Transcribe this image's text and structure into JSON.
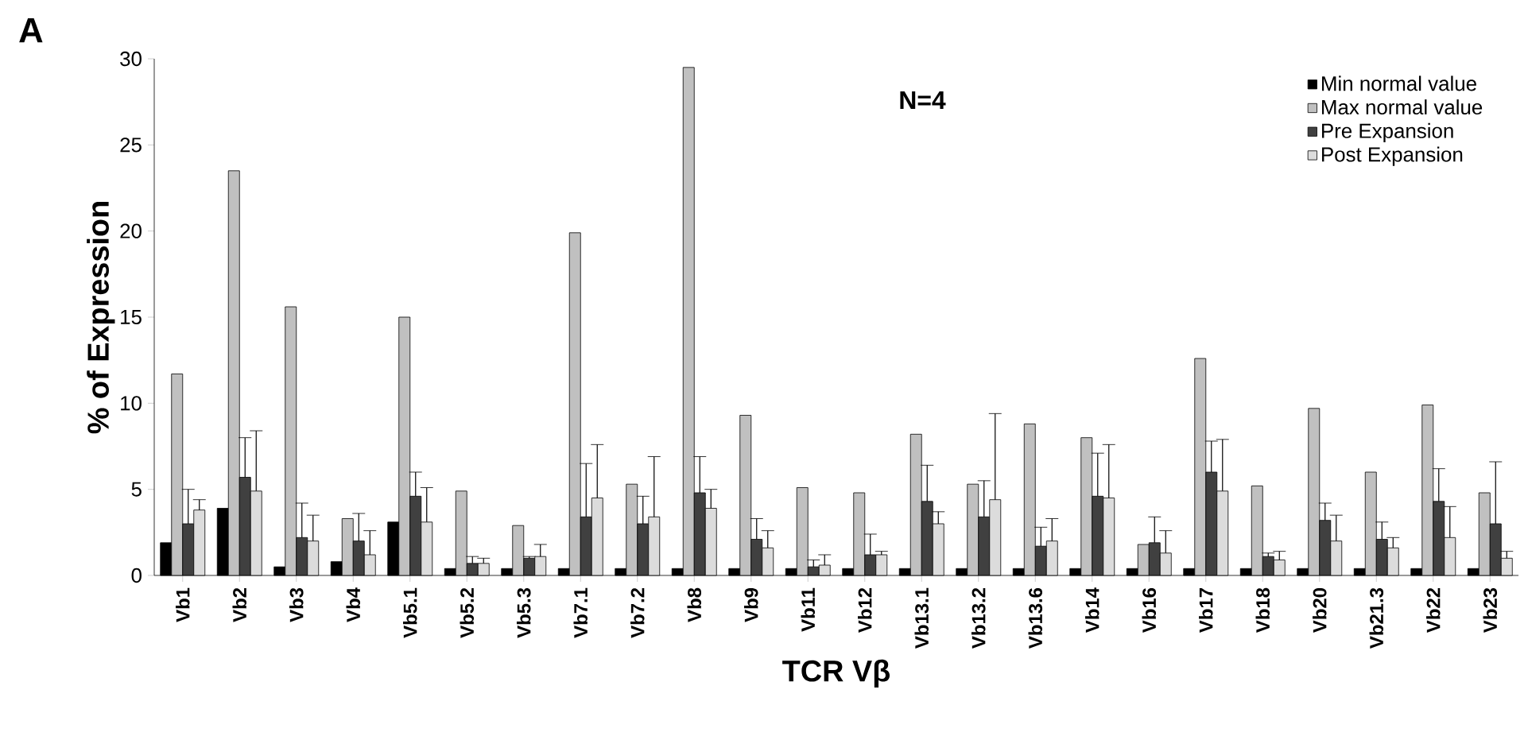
{
  "chart_data": {
    "type": "bar",
    "xlabel": "TCR Vβ",
    "ylabel": "% of Expression",
    "annotations": [
      "A",
      "N=4"
    ],
    "categories": [
      "Vb1",
      "Vb2",
      "Vb3",
      "Vb4",
      "Vb5.1",
      "Vb5.2",
      "Vb5.3",
      "Vb7.1",
      "Vb7.2",
      "Vb8",
      "Vb9",
      "Vb11",
      "Vb12",
      "Vb13.1",
      "Vb13.2",
      "Vb13.6",
      "Vb14",
      "Vb16",
      "Vb17",
      "Vb18",
      "Vb20",
      "Vb21.3",
      "Vb22",
      "Vb23"
    ],
    "series": [
      {
        "name": "Min normal value",
        "color": "#000000",
        "values": [
          1.9,
          3.9,
          0.5,
          0.8,
          3.1,
          0.4,
          0.4,
          0.4,
          0.4,
          0.4,
          0.4,
          0.4,
          0.4,
          0.4,
          0.4,
          0.4,
          0.4,
          0.4,
          0.4,
          0.4,
          0.4,
          0.4,
          0.4,
          0.4
        ]
      },
      {
        "name": "Max normal value",
        "color": "#c0c0c0",
        "values": [
          11.7,
          23.5,
          15.6,
          3.3,
          15.0,
          4.9,
          2.9,
          19.9,
          5.3,
          29.5,
          9.3,
          5.1,
          4.8,
          8.2,
          5.3,
          8.8,
          8.0,
          1.8,
          12.6,
          5.2,
          9.7,
          6.0,
          9.9,
          4.8
        ]
      },
      {
        "name": "Pre Expansion",
        "color": "#404040",
        "values": [
          3.0,
          5.7,
          2.2,
          2.0,
          4.6,
          0.7,
          1.0,
          3.4,
          3.0,
          4.8,
          2.1,
          0.5,
          1.2,
          4.3,
          3.4,
          1.7,
          4.6,
          1.9,
          6.0,
          1.1,
          3.2,
          2.1,
          4.3,
          3.0
        ],
        "errors": [
          [
            3.0,
            5.0
          ],
          [
            5.7,
            8.0
          ],
          [
            2.2,
            4.2
          ],
          [
            2.0,
            3.6
          ],
          [
            4.6,
            6.0
          ],
          [
            0.7,
            1.1
          ],
          [
            1.0,
            1.1
          ],
          [
            3.4,
            6.5
          ],
          [
            3.0,
            4.6
          ],
          [
            4.8,
            6.9
          ],
          [
            2.1,
            3.3
          ],
          [
            0.5,
            0.9
          ],
          [
            1.2,
            2.4
          ],
          [
            4.3,
            6.4
          ],
          [
            3.4,
            5.5
          ],
          [
            1.7,
            2.8
          ],
          [
            4.6,
            7.1
          ],
          [
            1.9,
            3.4
          ],
          [
            6.0,
            7.8
          ],
          [
            1.1,
            1.3
          ],
          [
            3.2,
            4.2
          ],
          [
            2.1,
            3.1
          ],
          [
            4.3,
            6.2
          ],
          [
            3.0,
            6.6
          ]
        ]
      },
      {
        "name": "Post Expansion",
        "color": "#dcdcdc",
        "values": [
          3.8,
          4.9,
          2.0,
          1.2,
          3.1,
          0.7,
          1.1,
          4.5,
          3.4,
          3.9,
          1.6,
          0.6,
          1.2,
          3.0,
          4.4,
          2.0,
          4.5,
          1.3,
          4.9,
          0.9,
          2.0,
          1.6,
          2.2,
          1.0
        ],
        "errors": [
          [
            3.8,
            4.4
          ],
          [
            4.9,
            8.4
          ],
          [
            2.0,
            3.5
          ],
          [
            1.2,
            2.6
          ],
          [
            3.1,
            5.1
          ],
          [
            0.7,
            1.0
          ],
          [
            1.1,
            1.8
          ],
          [
            4.5,
            7.6
          ],
          [
            3.4,
            6.9
          ],
          [
            3.9,
            5.0
          ],
          [
            1.6,
            2.6
          ],
          [
            0.6,
            1.2
          ],
          [
            1.2,
            1.4
          ],
          [
            3.0,
            3.7
          ],
          [
            4.4,
            9.4
          ],
          [
            2.0,
            3.3
          ],
          [
            4.5,
            7.6
          ],
          [
            1.3,
            2.6
          ],
          [
            4.9,
            7.9
          ],
          [
            0.9,
            1.4
          ],
          [
            2.0,
            3.5
          ],
          [
            1.6,
            2.2
          ],
          [
            2.2,
            4.0
          ],
          [
            1.0,
            1.4
          ]
        ]
      }
    ],
    "ylim": [
      0,
      30
    ],
    "yticks": [
      0,
      5,
      10,
      15,
      20,
      25,
      30
    ],
    "grid": false,
    "legend": "top right"
  }
}
